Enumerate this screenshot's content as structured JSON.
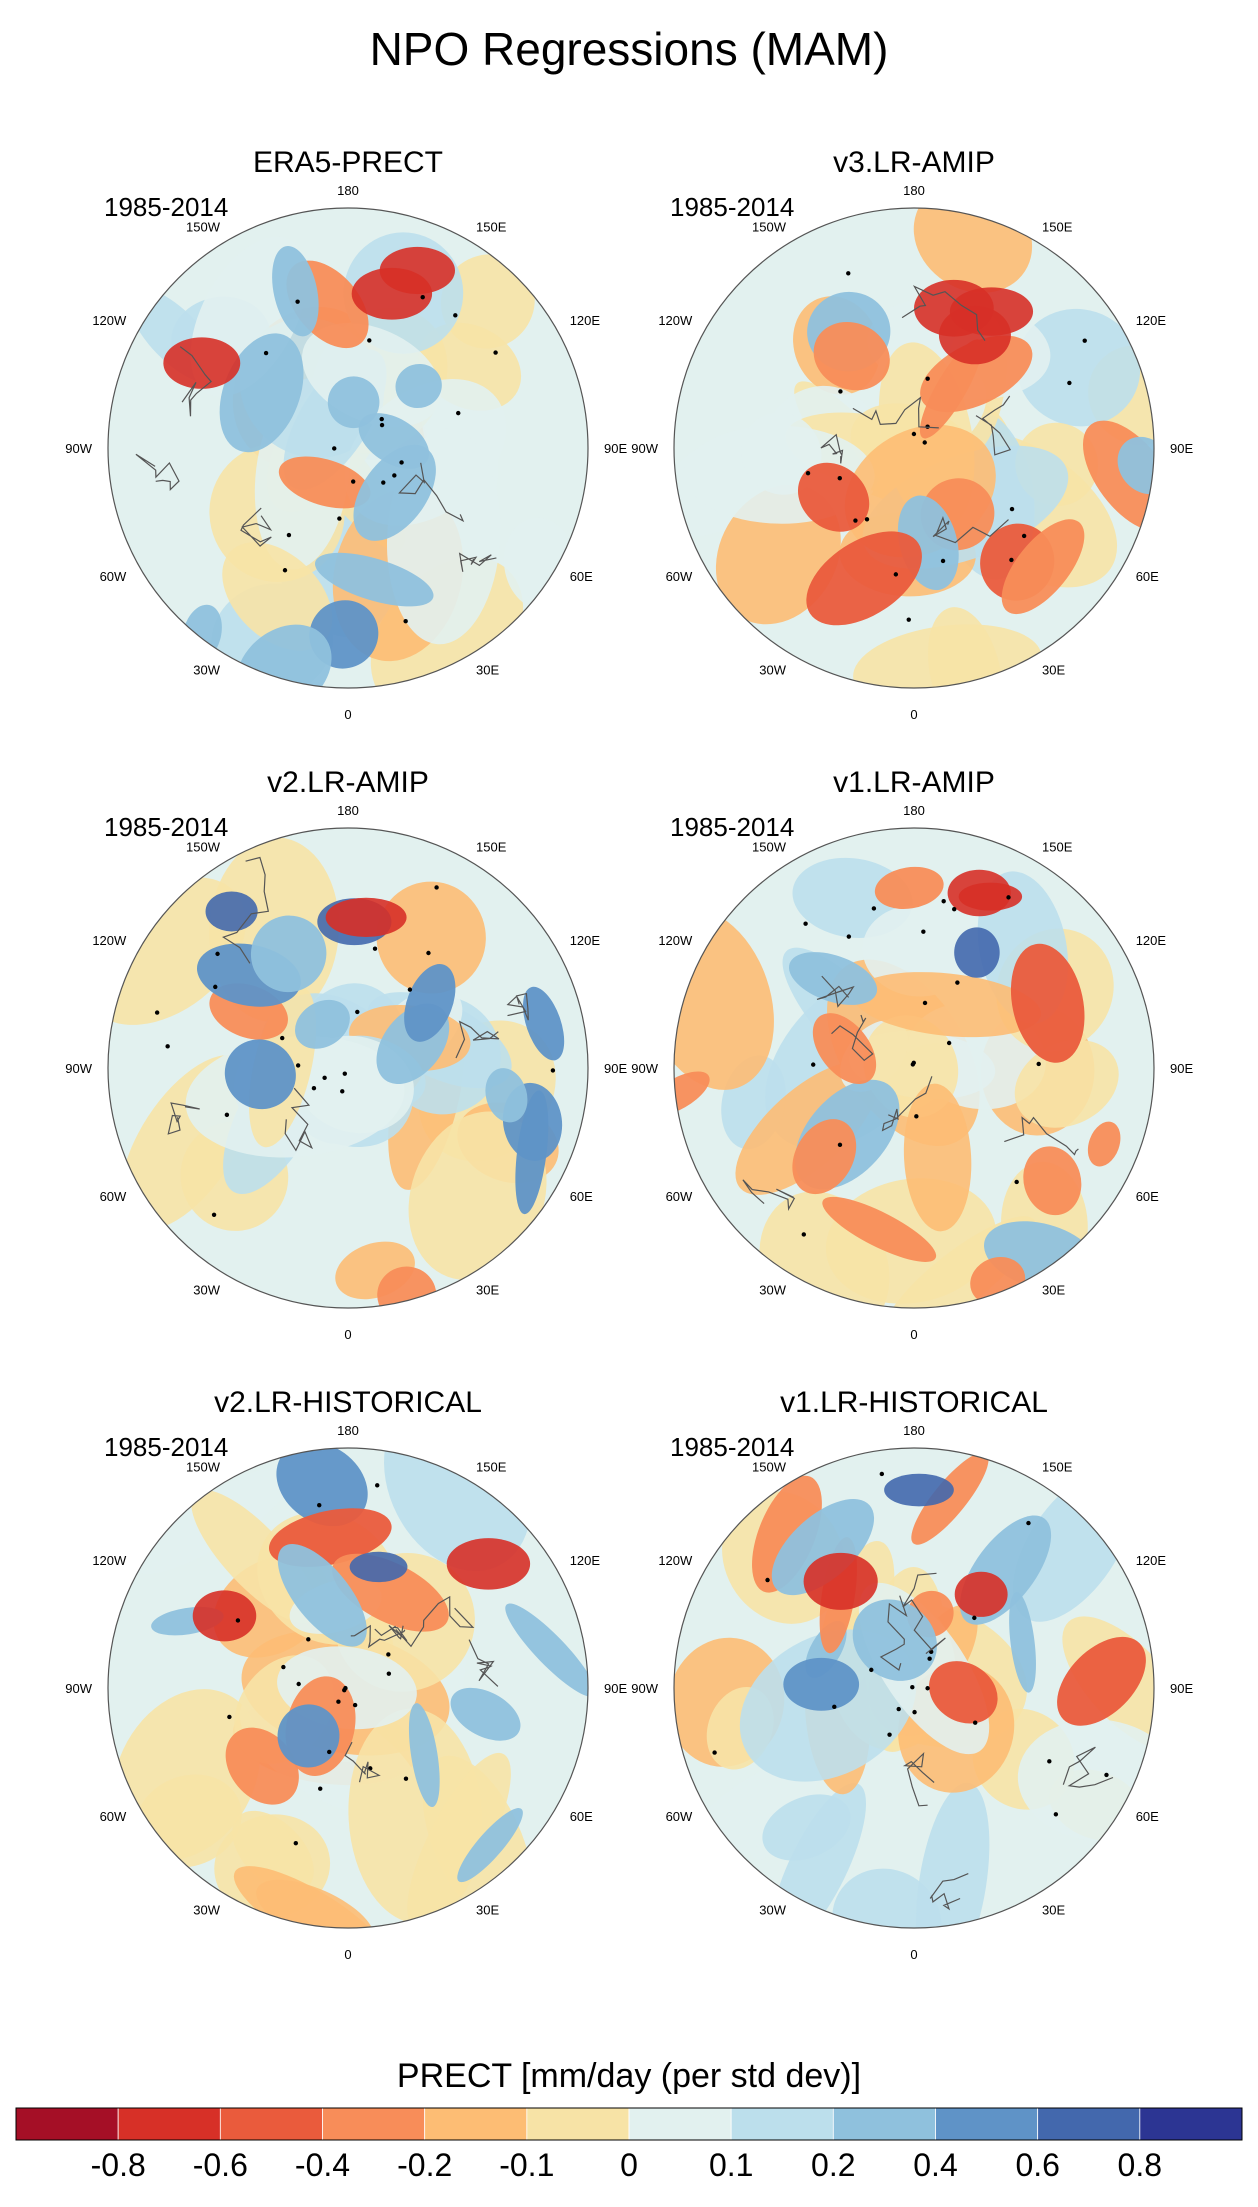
{
  "figure": {
    "title": "NPO Regressions (MAM)"
  },
  "panels": [
    {
      "title": "ERA5-PRECT",
      "period": "1985-2014"
    },
    {
      "title": "v3.LR-AMIP",
      "period": "1985-2014"
    },
    {
      "title": "v2.LR-AMIP",
      "period": "1985-2014"
    },
    {
      "title": "v1.LR-AMIP",
      "period": "1985-2014"
    },
    {
      "title": "v2.LR-HISTORICAL",
      "period": "1985-2014"
    },
    {
      "title": "v1.LR-HISTORICAL",
      "period": "1985-2014"
    }
  ],
  "longitude_labels": [
    "180",
    "150E",
    "120E",
    "90E",
    "60E",
    "30E",
    "0",
    "30W",
    "60W",
    "90W",
    "120W",
    "150W"
  ],
  "colorbar": {
    "title": "PRECT [mm/day (per std dev)]",
    "tick_labels": [
      "-0.8",
      "-0.6",
      "-0.4",
      "-0.2",
      "-0.1",
      "0",
      "0.1",
      "0.2",
      "0.4",
      "0.6",
      "0.8"
    ],
    "colors": [
      "#a50f26",
      "#d73027",
      "#ea5b3c",
      "#f88d59",
      "#fdbd74",
      "#f7e3a6",
      "#e2f1ef",
      "#bcdfec",
      "#8fc1dd",
      "#5f93c7",
      "#4368ad",
      "#2c3593"
    ]
  }
}
